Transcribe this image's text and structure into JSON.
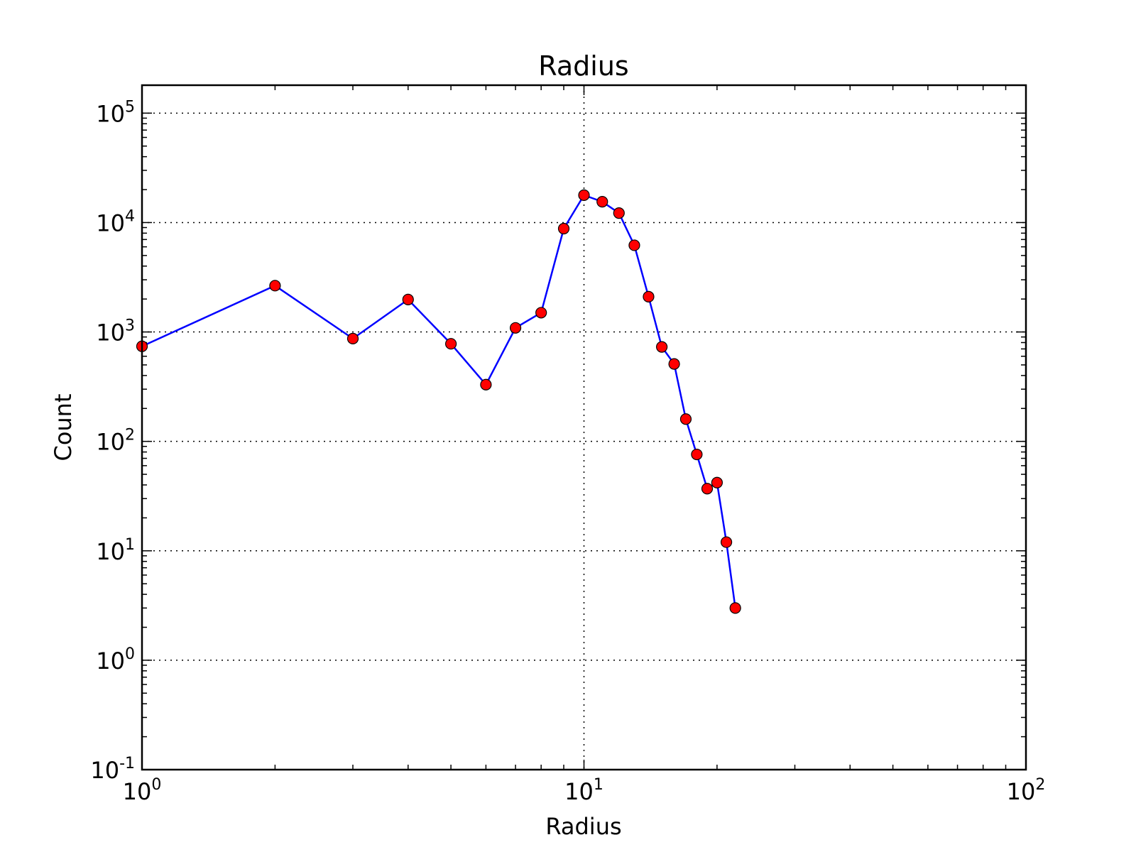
{
  "chart_data": {
    "type": "line",
    "title": "Radius",
    "xlabel": "Radius",
    "ylabel": "Count",
    "x_scale": "log",
    "y_scale": "log",
    "xlim": [
      1,
      100
    ],
    "ylim": [
      0.1,
      180000
    ],
    "grid": "major, dotted",
    "x_ticks": [
      {
        "value": 1,
        "base": "10",
        "exp": "0"
      },
      {
        "value": 10,
        "base": "10",
        "exp": "1"
      },
      {
        "value": 100,
        "base": "10",
        "exp": "2"
      }
    ],
    "y_ticks": [
      {
        "value": 0.1,
        "base": "10",
        "exp": "-1"
      },
      {
        "value": 1,
        "base": "10",
        "exp": "0"
      },
      {
        "value": 10,
        "base": "10",
        "exp": "1"
      },
      {
        "value": 100,
        "base": "10",
        "exp": "2"
      },
      {
        "value": 1000,
        "base": "10",
        "exp": "3"
      },
      {
        "value": 10000,
        "base": "10",
        "exp": "4"
      },
      {
        "value": 100000,
        "base": "10",
        "exp": "5"
      }
    ],
    "series": [
      {
        "color": "#0000ff",
        "marker_color": "#ff0000",
        "x": [
          1,
          2,
          3,
          4,
          5,
          6,
          7,
          8,
          9,
          10,
          11,
          12,
          13,
          14,
          15,
          16,
          17,
          18,
          19,
          20,
          21,
          22
        ],
        "y": [
          740,
          2650,
          870,
          1980,
          780,
          330,
          1090,
          1500,
          8800,
          17800,
          15500,
          12200,
          6200,
          2100,
          730,
          510,
          160,
          76,
          37,
          42,
          12,
          3
        ]
      }
    ]
  }
}
